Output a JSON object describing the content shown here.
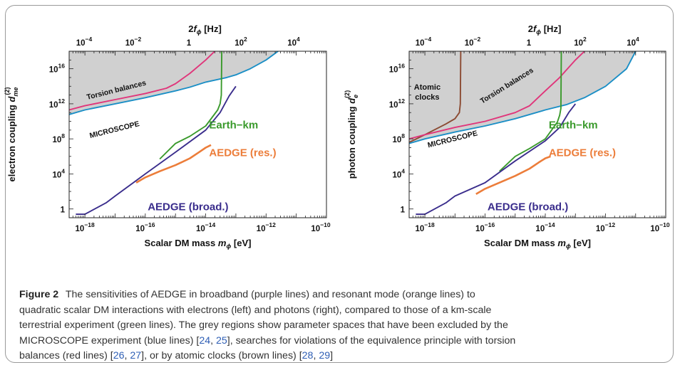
{
  "chart_data": [
    {
      "type": "line",
      "xlabel": "Scalar DM mass m_ϕ [eV]",
      "ylabel": "electron coupling d_me^(2)",
      "top_axis_label": "2f_ϕ [Hz]",
      "x_scale": "log",
      "y_scale": "log",
      "xlim": [
        3e-19,
        1e-10
      ],
      "ylim": [
        0.1,
        1e+18
      ],
      "x_ticks": [
        "10^-18",
        "10^-16",
        "10^-14",
        "10^-12",
        "10^-10"
      ],
      "y_ticks": [
        "1",
        "10^4",
        "10^8",
        "10^12",
        "10^16"
      ],
      "top_ticks": [
        "10^-4",
        "10^-2",
        "1",
        "10^2",
        "10^4"
      ],
      "excluded_region_color": "#d0d0d0",
      "series": [
        {
          "name": "Torsion balances",
          "color": "#e0357a",
          "points": [
            [
              3e-19,
              200000000000.0
            ],
            [
              1e-18,
              600000000000.0
            ],
            [
              1e-17,
              3000000000000.0
            ],
            [
              1e-16,
              15000000000000.0
            ],
            [
              5e-16,
              60000000000000.0
            ],
            [
              1e-15,
              200000000000000.0
            ],
            [
              3e-15,
              3000000000000000.0
            ],
            [
              1e-14,
              1e+17
            ],
            [
              2e-14,
              1e+18
            ]
          ]
        },
        {
          "name": "MICROSCOPE",
          "color": "#1b8fc6",
          "points": [
            [
              3e-19,
              60000000000.0
            ],
            [
              1e-18,
              200000000000.0
            ],
            [
              1e-17,
              1000000000000.0
            ],
            [
              1e-16,
              5000000000000.0
            ],
            [
              1e-15,
              30000000000000.0
            ],
            [
              3e-15,
              80000000000000.0
            ],
            [
              1e-14,
              300000000000000.0
            ],
            [
              5e-14,
              1000000000000000.0
            ],
            [
              1e-13,
              2000000000000000.0
            ],
            [
              3e-13,
              1e+16
            ],
            [
              1e-12,
              1e+17
            ],
            [
              2.5e-12,
              1e+18
            ]
          ]
        },
        {
          "name": "Earth−km",
          "color": "#3a9a2c",
          "points": [
            [
              3e-16,
              500000.0
            ],
            [
              1e-15,
              30000000.0
            ],
            [
              3e-15,
              200000000.0
            ],
            [
              1e-14,
              3000000000.0
            ],
            [
              2.5e-14,
              200000000000.0
            ],
            [
              3e-14,
              1000000000000.0
            ],
            [
              3.3e-14,
              10000000000000.0
            ],
            [
              3.4e-14,
              1e+18
            ]
          ]
        },
        {
          "name": "AEDGE (res.)",
          "color": "#ec7d3a",
          "points": [
            [
              5e-17,
              1000.0
            ],
            [
              1e-16,
              4000.0
            ],
            [
              3e-16,
              20000.0
            ],
            [
              1e-15,
              100000.0
            ],
            [
              3e-15,
              600000.0
            ],
            [
              6e-15,
              3000000.0
            ],
            [
              1e-14,
              10000000.0
            ],
            [
              1.5e-14,
              20000000.0
            ]
          ]
        },
        {
          "name": "AEDGE (broad.)",
          "color": "#3a2d8c",
          "points": [
            [
              5e-19,
              0.25
            ],
            [
              1e-18,
              0.25
            ],
            [
              5e-18,
              5
            ],
            [
              1e-17,
              30
            ],
            [
              1e-16,
              10000.0
            ],
            [
              1e-15,
              3000000.0
            ],
            [
              1e-14,
              1000000000.0
            ],
            [
              3e-14,
              100000000000.0
            ],
            [
              6e-14,
              8000000000000.0
            ],
            [
              1e-13,
              100000000000000.0
            ]
          ]
        }
      ],
      "annotations": [
        "Torsion balances",
        "MICROSCOPE",
        "Earth−km",
        "AEDGE (res.)",
        "AEDGE (broad.)"
      ]
    },
    {
      "type": "line",
      "xlabel": "Scalar DM mass m_ϕ [eV]",
      "ylabel": "photon coupling d_e^(2)",
      "top_axis_label": "2f_ϕ [Hz]",
      "x_scale": "log",
      "y_scale": "log",
      "xlim": [
        3e-19,
        1e-10
      ],
      "ylim": [
        0.1,
        1e+18
      ],
      "x_ticks": [
        "10^-18",
        "10^-16",
        "10^-14",
        "10^-12",
        "10^-10"
      ],
      "y_ticks": [
        "1",
        "10^4",
        "10^8",
        "10^12",
        "10^16"
      ],
      "top_ticks": [
        "10^-4",
        "10^-2",
        "1",
        "10^2",
        "10^4"
      ],
      "excluded_region_color": "#d0d0d0",
      "series": [
        {
          "name": "Atomic clocks",
          "color": "#8b4a32",
          "points": [
            [
              3e-19,
              40000000.0
            ],
            [
              1e-18,
              300000000.0
            ],
            [
              5e-18,
              5000000000.0
            ],
            [
              1e-17,
              20000000000.0
            ],
            [
              1.4e-17,
              100000000000.0
            ],
            [
              1.5e-17,
              1000000000000.0
            ],
            [
              1.55e-17,
              1e+18
            ]
          ]
        },
        {
          "name": "Torsion balances",
          "color": "#e0357a",
          "points": [
            [
              3e-19,
              100000000.0
            ],
            [
              1e-18,
              300000000.0
            ],
            [
              1e-17,
              2000000000.0
            ],
            [
              1e-16,
              10000000000.0
            ],
            [
              1e-15,
              100000000000.0
            ],
            [
              3e-15,
              600000000000.0
            ],
            [
              1e-14,
              30000000000000.0
            ],
            [
              3e-14,
              1000000000000000.0
            ],
            [
              1e-13,
              1e+17
            ],
            [
              2e-13,
              1e+18
            ]
          ]
        },
        {
          "name": "MICROSCOPE",
          "color": "#1b8fc6",
          "points": [
            [
              3e-19,
              30000000.0
            ],
            [
              1e-18,
              100000000.0
            ],
            [
              1e-17,
              600000000.0
            ],
            [
              1e-16,
              3000000000.0
            ],
            [
              1e-15,
              20000000000.0
            ],
            [
              1e-14,
              200000000000.0
            ],
            [
              5e-14,
              800000000000.0
            ],
            [
              2e-13,
              5000000000000.0
            ],
            [
              1e-12,
              100000000000000.0
            ],
            [
              5e-12,
              1e+16
            ],
            [
              1e-11,
              1e+18
            ]
          ]
        },
        {
          "name": "Earth−km",
          "color": "#3a9a2c",
          "points": [
            [
              3e-16,
              20000.0
            ],
            [
              1e-15,
              1000000.0
            ],
            [
              3e-15,
              8000000.0
            ],
            [
              1e-14,
              100000000.0
            ],
            [
              2.5e-14,
              8000000000.0
            ],
            [
              3e-14,
              50000000000.0
            ],
            [
              3.3e-14,
              300000000000.0
            ],
            [
              3.4e-14,
              1e+18
            ]
          ]
        },
        {
          "name": "AEDGE (res.)",
          "color": "#ec7d3a",
          "points": [
            [
              5e-17,
              50
            ],
            [
              1e-16,
              200
            ],
            [
              3e-16,
              1000.0
            ],
            [
              1e-15,
              6000.0
            ],
            [
              3e-15,
              40000.0
            ],
            [
              6e-15,
              200000.0
            ],
            [
              1e-14,
              600000.0
            ],
            [
              1.5e-14,
              1000000.0
            ]
          ]
        },
        {
          "name": "AEDGE (broad.)",
          "color": "#3a2d8c",
          "points": [
            [
              5e-19,
              0.25
            ],
            [
              1e-18,
              0.25
            ],
            [
              5e-18,
              5
            ],
            [
              1e-17,
              30
            ],
            [
              1e-16,
              1000.0
            ],
            [
              1e-15,
              300000.0
            ],
            [
              1e-14,
              60000000.0
            ],
            [
              3e-14,
              2000000000.0
            ],
            [
              6e-14,
              100000000000.0
            ],
            [
              1e-13,
              1000000000000.0
            ]
          ]
        }
      ],
      "annotations": [
        "Atomic clocks",
        "Torsion balances",
        "MICROSCOPE",
        "Earth−km",
        "AEDGE (res.)",
        "AEDGE (broad.)"
      ]
    }
  ],
  "caption": {
    "label": "Figure 2",
    "line1": "The sensitivities of AEDGE in broadband (purple lines) and resonant mode (orange lines) to",
    "line2": "quadratic scalar DM interactions with electrons (left) and photons (right), compared to those of a km-scale",
    "line3": "terrestrial experiment (green lines). The grey regions show parameter spaces that have been excluded by the",
    "line4_a": "MICROSCOPE experiment (blue lines) [",
    "cite_24": "24",
    "sep1": ", ",
    "cite_25": "25",
    "line4_b": "], searches for violations of the equivalence principle with torsion",
    "line5_a": "balances (red lines) [",
    "cite_26": "26",
    "sep2": ", ",
    "cite_27": "27",
    "line5_b": "], or by atomic clocks (brown lines) [",
    "cite_28": "28",
    "sep3": ", ",
    "cite_29": "29",
    "line5_c": "]"
  }
}
